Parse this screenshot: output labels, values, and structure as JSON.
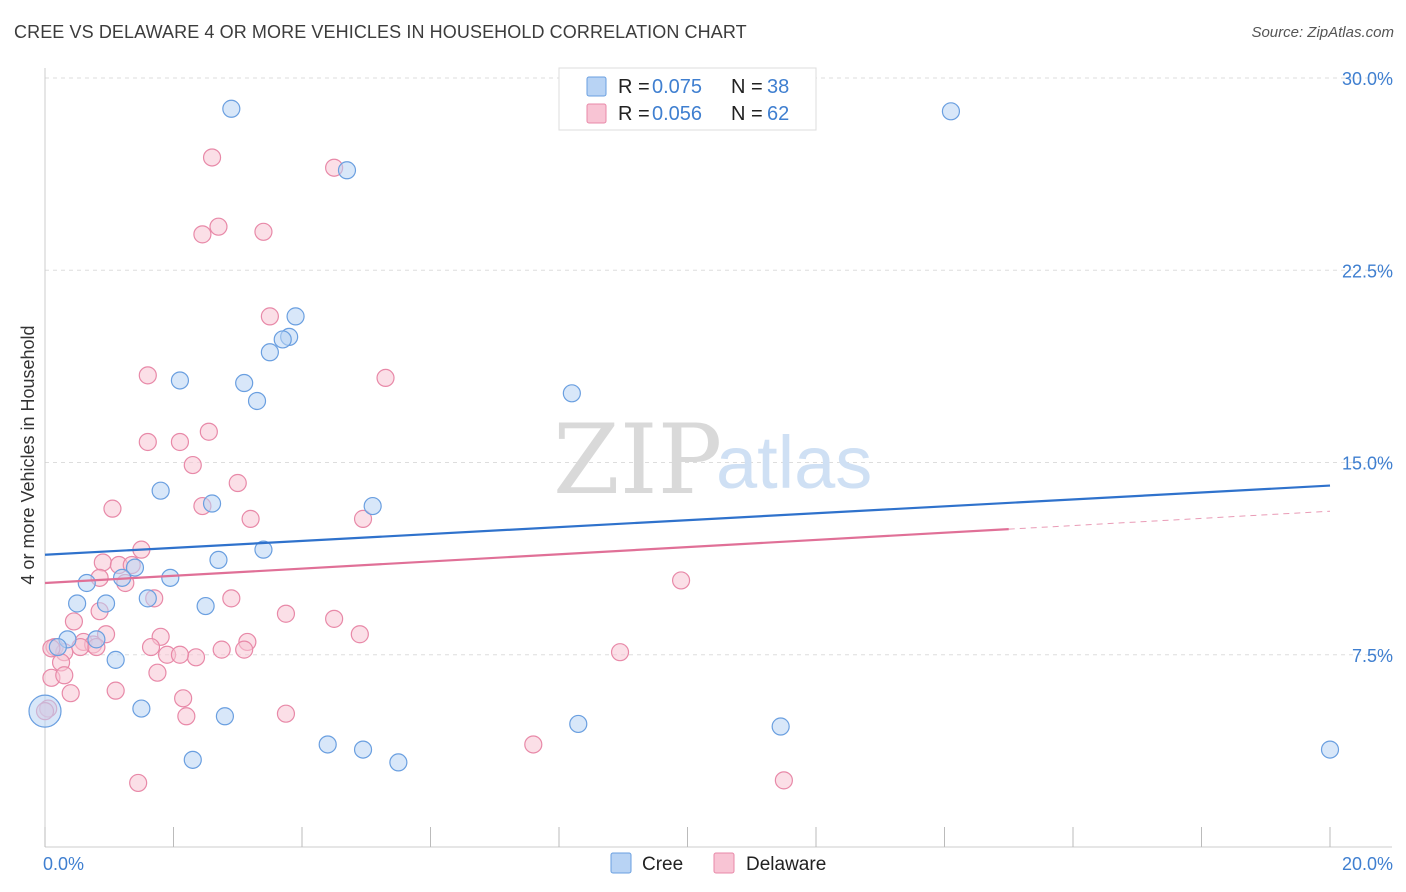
{
  "title": "CREE VS DELAWARE 4 OR MORE VEHICLES IN HOUSEHOLD CORRELATION CHART",
  "source": "Source: ZipAtlas.com",
  "watermark": {
    "zip": "ZIP",
    "atlas": "atlas"
  },
  "legend": {
    "r_label": "R =",
    "n_label": "N =",
    "rows": [
      {
        "name": "Cree",
        "r": "0.075",
        "n": "38",
        "fill": "#b8d3f4",
        "stroke": "#6a9fe0"
      },
      {
        "name": "Delaware",
        "r": "0.056",
        "n": "62",
        "fill": "#f8c4d4",
        "stroke": "#e889a8"
      }
    ]
  },
  "bottom_legend": [
    "Cree",
    "Delaware"
  ],
  "chart_data": {
    "type": "scatter",
    "title": "CREE VS DELAWARE 4 OR MORE VEHICLES IN HOUSEHOLD CORRELATION CHART",
    "xlabel": "",
    "ylabel": "4 or more Vehicles in Household",
    "xlim": [
      0,
      20
    ],
    "ylim": [
      0,
      30.75
    ],
    "x_tick_labels": [
      {
        "value": 0,
        "label": "0.0%"
      },
      {
        "value": 20,
        "label": "20.0%"
      }
    ],
    "y_tick_labels": [
      {
        "value": 7.5,
        "label": "7.5%"
      },
      {
        "value": 15.0,
        "label": "15.0%"
      },
      {
        "value": 22.5,
        "label": "22.5%"
      },
      {
        "value": 30.0,
        "label": "30.0%"
      }
    ],
    "series": [
      {
        "name": "Cree",
        "color": "#6a9fe0",
        "fill": "#b8d3f4",
        "trend": {
          "x": [
            0,
            20
          ],
          "y": [
            11.4,
            14.1
          ],
          "color": "#2f72cc"
        },
        "points": [
          {
            "x": 2.9,
            "y": 28.8
          },
          {
            "x": 14.1,
            "y": 28.7
          },
          {
            "x": 4.7,
            "y": 26.4
          },
          {
            "x": 3.9,
            "y": 20.7
          },
          {
            "x": 3.8,
            "y": 19.9
          },
          {
            "x": 3.7,
            "y": 19.8
          },
          {
            "x": 3.5,
            "y": 19.3
          },
          {
            "x": 2.1,
            "y": 18.2
          },
          {
            "x": 3.1,
            "y": 18.1
          },
          {
            "x": 3.3,
            "y": 17.4
          },
          {
            "x": 8.2,
            "y": 17.7
          },
          {
            "x": 1.8,
            "y": 13.9
          },
          {
            "x": 2.6,
            "y": 13.4
          },
          {
            "x": 5.1,
            "y": 13.3
          },
          {
            "x": 3.4,
            "y": 11.6
          },
          {
            "x": 2.7,
            "y": 11.2
          },
          {
            "x": 1.4,
            "y": 10.9
          },
          {
            "x": 1.2,
            "y": 10.5
          },
          {
            "x": 1.95,
            "y": 10.5
          },
          {
            "x": 0.65,
            "y": 10.3
          },
          {
            "x": 1.6,
            "y": 9.7
          },
          {
            "x": 0.5,
            "y": 9.5
          },
          {
            "x": 0.95,
            "y": 9.5
          },
          {
            "x": 2.5,
            "y": 9.4
          },
          {
            "x": 0.35,
            "y": 8.1
          },
          {
            "x": 0.8,
            "y": 8.1
          },
          {
            "x": 0.2,
            "y": 7.8
          },
          {
            "x": 1.1,
            "y": 7.3
          },
          {
            "x": 1.5,
            "y": 5.4
          },
          {
            "x": 2.8,
            "y": 5.1
          },
          {
            "x": 8.3,
            "y": 4.8
          },
          {
            "x": 11.45,
            "y": 4.7
          },
          {
            "x": 0.0,
            "y": 5.3,
            "large": true
          },
          {
            "x": 4.4,
            "y": 4.0
          },
          {
            "x": 4.95,
            "y": 3.8
          },
          {
            "x": 2.3,
            "y": 3.4
          },
          {
            "x": 5.5,
            "y": 3.3
          },
          {
            "x": 20.0,
            "y": 3.8
          }
        ]
      },
      {
        "name": "Delaware",
        "color": "#e889a8",
        "fill": "#f8c4d4",
        "trend": {
          "x": [
            0,
            15.0
          ],
          "y": [
            10.3,
            12.4
          ],
          "dash_x": [
            15.0,
            20
          ],
          "dash_y": [
            12.4,
            13.1
          ],
          "color": "#e07097"
        },
        "points": [
          {
            "x": 2.6,
            "y": 26.9
          },
          {
            "x": 4.5,
            "y": 26.5
          },
          {
            "x": 2.7,
            "y": 24.2
          },
          {
            "x": 2.45,
            "y": 23.9
          },
          {
            "x": 3.4,
            "y": 24.0
          },
          {
            "x": 3.5,
            "y": 20.7
          },
          {
            "x": 1.6,
            "y": 18.4
          },
          {
            "x": 5.3,
            "y": 18.3
          },
          {
            "x": 2.55,
            "y": 16.2
          },
          {
            "x": 1.6,
            "y": 15.8
          },
          {
            "x": 2.1,
            "y": 15.8
          },
          {
            "x": 2.3,
            "y": 14.9
          },
          {
            "x": 3.0,
            "y": 14.2
          },
          {
            "x": 2.45,
            "y": 13.3
          },
          {
            "x": 1.05,
            "y": 13.2
          },
          {
            "x": 3.2,
            "y": 12.8
          },
          {
            "x": 4.95,
            "y": 12.8
          },
          {
            "x": 1.5,
            "y": 11.6
          },
          {
            "x": 0.9,
            "y": 11.1
          },
          {
            "x": 1.15,
            "y": 11.0
          },
          {
            "x": 1.35,
            "y": 11.0
          },
          {
            "x": 0.85,
            "y": 10.5
          },
          {
            "x": 1.25,
            "y": 10.3
          },
          {
            "x": 9.9,
            "y": 10.4
          },
          {
            "x": 1.7,
            "y": 9.7
          },
          {
            "x": 2.9,
            "y": 9.7
          },
          {
            "x": 0.85,
            "y": 9.2
          },
          {
            "x": 3.75,
            "y": 9.1
          },
          {
            "x": 4.5,
            "y": 8.9
          },
          {
            "x": 0.45,
            "y": 8.8
          },
          {
            "x": 0.95,
            "y": 8.3
          },
          {
            "x": 1.8,
            "y": 8.2
          },
          {
            "x": 4.9,
            "y": 8.3
          },
          {
            "x": 0.6,
            "y": 8.0
          },
          {
            "x": 0.75,
            "y": 7.9
          },
          {
            "x": 3.15,
            "y": 8.0
          },
          {
            "x": 0.15,
            "y": 7.8
          },
          {
            "x": 0.55,
            "y": 7.8
          },
          {
            "x": 0.8,
            "y": 7.8
          },
          {
            "x": 1.65,
            "y": 7.8
          },
          {
            "x": 2.75,
            "y": 7.7
          },
          {
            "x": 3.1,
            "y": 7.7
          },
          {
            "x": 0.3,
            "y": 7.6
          },
          {
            "x": 1.9,
            "y": 7.5
          },
          {
            "x": 2.35,
            "y": 7.4
          },
          {
            "x": 2.1,
            "y": 7.5
          },
          {
            "x": 8.95,
            "y": 7.6
          },
          {
            "x": 0.25,
            "y": 7.2
          },
          {
            "x": 1.75,
            "y": 6.8
          },
          {
            "x": 0.1,
            "y": 6.6
          },
          {
            "x": 0.3,
            "y": 6.7
          },
          {
            "x": 1.1,
            "y": 6.1
          },
          {
            "x": 0.4,
            "y": 6.0
          },
          {
            "x": 2.15,
            "y": 5.8
          },
          {
            "x": 0.05,
            "y": 5.4
          },
          {
            "x": 2.2,
            "y": 5.1
          },
          {
            "x": 3.75,
            "y": 5.2
          },
          {
            "x": 7.6,
            "y": 4.0
          },
          {
            "x": 1.45,
            "y": 2.5
          },
          {
            "x": 11.5,
            "y": 2.6
          },
          {
            "x": 0.0,
            "y": 5.3
          },
          {
            "x": 0.1,
            "y": 7.75
          }
        ]
      }
    ]
  }
}
